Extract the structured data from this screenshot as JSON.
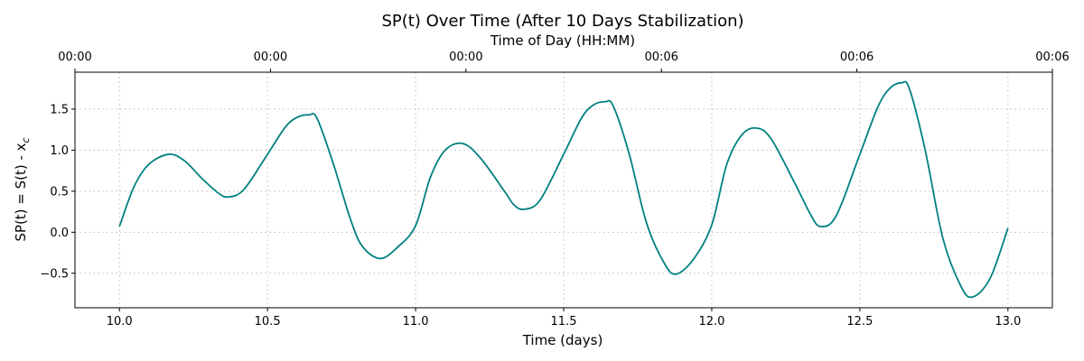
{
  "chart_data": {
    "type": "line",
    "title": "SP(t) Over Time (After 10 Days Stabilization)",
    "xlabel": "Time (days)",
    "ylabel": "SP(t) = S(t) - x",
    "ylabel_subscript": "c",
    "top_xlabel": "Time of Day (HH:MM)",
    "xlim": [
      9.85,
      13.15
    ],
    "ylim": [
      -0.92,
      1.95
    ],
    "xticks": [
      10.0,
      10.5,
      11.0,
      11.5,
      12.0,
      12.5,
      13.0
    ],
    "xtick_labels": [
      "10.0",
      "10.5",
      "11.0",
      "11.5",
      "12.0",
      "12.5",
      "13.0"
    ],
    "yticks": [
      -0.5,
      0.0,
      0.5,
      1.0,
      1.5
    ],
    "ytick_labels": [
      "−0.5",
      "0.0",
      "0.5",
      "1.0",
      "1.5"
    ],
    "top_xticks": [
      9.85,
      10.51,
      11.17,
      11.83,
      12.49,
      13.15
    ],
    "top_xtick_labels": [
      "00:00",
      "00:00",
      "00:00",
      "00:06",
      "00:06",
      "00:06"
    ],
    "grid": true,
    "series": [
      {
        "color": "#008080",
        "x": [
          10.0,
          10.05,
          10.1,
          10.167,
          10.22,
          10.28,
          10.333,
          10.367,
          10.42,
          10.5,
          10.56,
          10.6,
          10.64,
          10.667,
          10.72,
          10.78,
          10.82,
          10.88,
          10.94,
          11.0,
          11.05,
          11.1,
          11.16,
          11.22,
          11.3,
          11.333,
          11.367,
          11.42,
          11.5,
          11.56,
          11.6,
          11.64,
          11.667,
          11.72,
          11.78,
          11.84,
          11.88,
          11.94,
          12.0,
          12.05,
          12.1,
          12.15,
          12.2,
          12.28,
          12.333,
          12.367,
          12.42,
          12.5,
          12.56,
          12.6,
          12.64,
          12.667,
          12.72,
          12.78,
          12.84,
          12.88,
          12.94,
          13.0
        ],
        "y": [
          0.07,
          0.56,
          0.83,
          0.95,
          0.87,
          0.65,
          0.48,
          0.43,
          0.52,
          0.95,
          1.28,
          1.4,
          1.43,
          1.39,
          0.86,
          0.16,
          -0.17,
          -0.32,
          -0.18,
          0.08,
          0.67,
          1.0,
          1.08,
          0.9,
          0.5,
          0.33,
          0.28,
          0.39,
          0.95,
          1.39,
          1.55,
          1.59,
          1.54,
          0.97,
          0.11,
          -0.38,
          -0.51,
          -0.32,
          0.09,
          0.82,
          1.18,
          1.27,
          1.14,
          0.6,
          0.22,
          0.07,
          0.2,
          0.95,
          1.52,
          1.75,
          1.82,
          1.75,
          1.01,
          -0.07,
          -0.65,
          -0.79,
          -0.56,
          0.05
        ]
      }
    ]
  }
}
